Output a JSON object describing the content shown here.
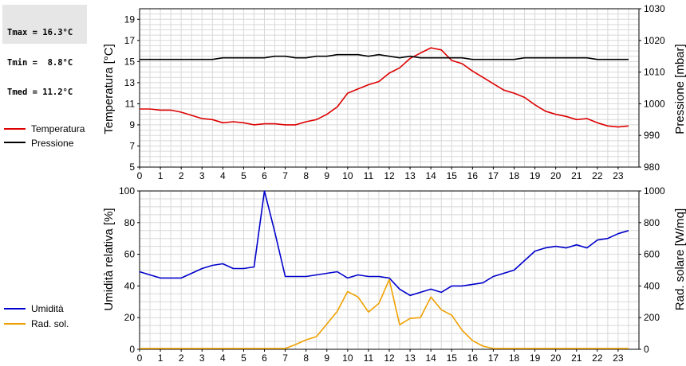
{
  "stats": {
    "tmax": "Tmax = 16.3°C",
    "tmin": "Tmin =  8.8°C",
    "tmed": "Tmed = 11.2°C"
  },
  "colors": {
    "temperatura": "#dd0000",
    "pressione": "#000000",
    "umidita": "#0000cc",
    "rad_sol": "#f0a000",
    "grid": "#d8d8d8"
  },
  "chart_data": [
    {
      "type": "line",
      "name": "top",
      "xlabel": "",
      "ylabel": "Temperatura [°C]",
      "ylabel_right": "Pressione [mbar]",
      "xlim": [
        0,
        24
      ],
      "xticks": [
        0,
        1,
        2,
        3,
        4,
        5,
        6,
        7,
        8,
        9,
        10,
        11,
        12,
        13,
        14,
        15,
        16,
        17,
        18,
        19,
        20,
        21,
        22,
        23
      ],
      "ylim": [
        5,
        20
      ],
      "yticks_left": [
        5,
        7,
        9,
        11,
        13,
        15,
        17,
        19
      ],
      "ylim_right": [
        980,
        1030
      ],
      "yticks_right": [
        980,
        990,
        1000,
        1010,
        1020,
        1030
      ],
      "legend": [
        "Temperatura",
        "Pressione"
      ],
      "series": [
        {
          "name": "Temperatura",
          "axis": "left",
          "x": [
            0,
            0.5,
            1,
            1.5,
            2,
            2.5,
            3,
            3.5,
            4,
            4.5,
            5,
            5.5,
            6,
            6.5,
            7,
            7.5,
            8,
            8.5,
            9,
            9.5,
            10,
            10.5,
            11,
            11.5,
            12,
            12.5,
            13,
            13.5,
            14,
            14.5,
            15,
            15.5,
            16,
            16.5,
            17,
            17.5,
            18,
            18.5,
            19,
            19.5,
            20,
            20.5,
            21,
            21.5,
            22,
            22.5,
            23,
            23.5
          ],
          "y": [
            10.5,
            10.5,
            10.4,
            10.4,
            10.2,
            9.9,
            9.6,
            9.5,
            9.2,
            9.3,
            9.2,
            9.0,
            9.1,
            9.1,
            9.0,
            9.0,
            9.3,
            9.5,
            10.0,
            10.7,
            12.0,
            12.4,
            12.8,
            13.1,
            13.9,
            14.4,
            15.3,
            15.8,
            16.3,
            16.1,
            15.1,
            14.8,
            14.1,
            13.5,
            12.9,
            12.3,
            12.0,
            11.6,
            10.9,
            10.3,
            10.0,
            9.8,
            9.5,
            9.6,
            9.2,
            8.9,
            8.8,
            8.9
          ]
        },
        {
          "name": "Pressione",
          "axis": "right",
          "x": [
            0,
            0.5,
            1,
            1.5,
            2,
            2.5,
            3,
            3.5,
            4,
            4.5,
            5,
            5.5,
            6,
            6.5,
            7,
            7.5,
            8,
            8.5,
            9,
            9.5,
            10,
            10.5,
            11,
            11.5,
            12,
            12.5,
            13,
            13.5,
            14,
            14.5,
            15,
            15.5,
            16,
            16.5,
            17,
            17.5,
            18,
            18.5,
            19,
            19.5,
            20,
            20.5,
            21,
            21.5,
            22,
            22.5,
            23,
            23.5
          ],
          "y": [
            1014,
            1014,
            1014,
            1014,
            1014,
            1014,
            1014,
            1014,
            1014.5,
            1014.5,
            1014.5,
            1014.5,
            1014.5,
            1015,
            1015,
            1014.5,
            1014.5,
            1015,
            1015,
            1015.5,
            1015.5,
            1015.5,
            1015,
            1015.5,
            1015,
            1014.5,
            1015,
            1014.5,
            1014.5,
            1014.5,
            1014.5,
            1014.5,
            1014,
            1014,
            1014,
            1014,
            1014,
            1014.5,
            1014.5,
            1014.5,
            1014.5,
            1014.5,
            1014.5,
            1014.5,
            1014,
            1014,
            1014,
            1014
          ]
        }
      ]
    },
    {
      "type": "line",
      "name": "bottom",
      "xlabel": "",
      "ylabel": "Umidità relativa [%]",
      "ylabel_right": "Rad. solare [W/mq]",
      "xlim": [
        0,
        24
      ],
      "xticks": [
        0,
        1,
        2,
        3,
        4,
        5,
        6,
        7,
        8,
        9,
        10,
        11,
        12,
        13,
        14,
        15,
        16,
        17,
        18,
        19,
        20,
        21,
        22,
        23
      ],
      "ylim": [
        0,
        100
      ],
      "yticks_left": [
        0,
        20,
        40,
        60,
        80,
        100
      ],
      "ylim_right": [
        0,
        1000
      ],
      "yticks_right": [
        0,
        200,
        400,
        600,
        800,
        1000
      ],
      "legend": [
        "Umidità",
        "Rad. sol."
      ],
      "series": [
        {
          "name": "Umidità",
          "axis": "left",
          "x": [
            0,
            0.5,
            1,
            1.5,
            2,
            2.5,
            3,
            3.5,
            4,
            4.5,
            5,
            5.5,
            6,
            6.5,
            7,
            7.5,
            8,
            8.5,
            9,
            9.5,
            10,
            10.5,
            11,
            11.5,
            12,
            12.5,
            13,
            13.5,
            14,
            14.5,
            15,
            15.5,
            16,
            16.5,
            17,
            17.5,
            18,
            18.5,
            19,
            19.5,
            20,
            20.5,
            21,
            21.5,
            22,
            22.5,
            23,
            23.5
          ],
          "y": [
            49,
            47,
            45,
            45,
            45,
            48,
            51,
            53,
            54,
            51,
            51,
            52,
            100,
            74,
            46,
            46,
            46,
            47,
            48,
            49,
            45,
            47,
            46,
            46,
            45,
            38,
            34,
            36,
            38,
            36,
            40,
            40,
            41,
            42,
            46,
            48,
            50,
            56,
            62,
            64,
            65,
            64,
            66,
            64,
            69,
            70,
            73,
            75
          ]
        },
        {
          "name": "Rad. sol.",
          "axis": "right",
          "x": [
            0,
            0.5,
            1,
            1.5,
            2,
            2.5,
            3,
            3.5,
            4,
            4.5,
            5,
            5.5,
            6,
            6.5,
            7,
            7.5,
            8,
            8.5,
            9,
            9.5,
            10,
            10.5,
            11,
            11.5,
            12,
            12.5,
            13,
            13.5,
            14,
            14.5,
            15,
            15.5,
            16,
            16.5,
            17,
            17.5,
            18,
            18.5,
            19,
            19.5,
            20,
            20.5,
            21,
            21.5,
            22,
            22.5,
            23,
            23.5
          ],
          "y": [
            5,
            5,
            5,
            5,
            5,
            5,
            5,
            5,
            5,
            5,
            5,
            5,
            5,
            5,
            5,
            30,
            60,
            80,
            160,
            240,
            365,
            330,
            235,
            290,
            440,
            155,
            195,
            200,
            330,
            250,
            215,
            120,
            55,
            20,
            5,
            5,
            5,
            5,
            5,
            5,
            5,
            5,
            5,
            5,
            5,
            5,
            5,
            5
          ]
        }
      ]
    }
  ]
}
